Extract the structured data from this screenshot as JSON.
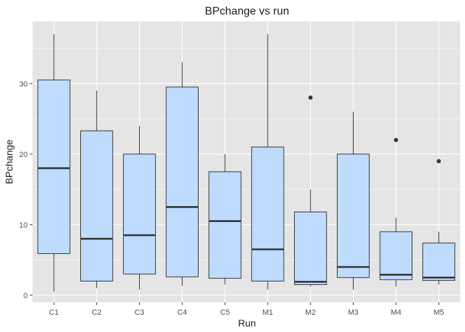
{
  "chart_data": {
    "type": "boxplot",
    "title": "BPchange vs run",
    "xlabel": "Run",
    "ylabel": "BPchange",
    "categories": [
      "C1",
      "C2",
      "C3",
      "C4",
      "C5",
      "M1",
      "M2",
      "M3",
      "M4",
      "M5"
    ],
    "boxes": [
      {
        "category": "C1",
        "min": 0.5,
        "q1": 5.9,
        "median": 18.0,
        "q3": 30.5,
        "max": 37.0,
        "outliers": []
      },
      {
        "category": "C2",
        "min": 1.0,
        "q1": 2.0,
        "median": 8.0,
        "q3": 23.3,
        "max": 29.0,
        "outliers": []
      },
      {
        "category": "C3",
        "min": 0.8,
        "q1": 3.0,
        "median": 8.5,
        "q3": 20.0,
        "max": 24.0,
        "outliers": []
      },
      {
        "category": "C4",
        "min": 1.3,
        "q1": 2.6,
        "median": 12.5,
        "q3": 29.5,
        "max": 33.0,
        "outliers": []
      },
      {
        "category": "C5",
        "min": 1.5,
        "q1": 2.4,
        "median": 10.5,
        "q3": 17.5,
        "max": 20.0,
        "outliers": []
      },
      {
        "category": "M1",
        "min": 0.8,
        "q1": 2.0,
        "median": 6.5,
        "q3": 21.0,
        "max": 37.0,
        "outliers": []
      },
      {
        "category": "M2",
        "min": 1.2,
        "q1": 1.5,
        "median": 1.9,
        "q3": 11.8,
        "max": 15.0,
        "outliers": [
          28.0
        ]
      },
      {
        "category": "M3",
        "min": 0.8,
        "q1": 2.5,
        "median": 4.0,
        "q3": 20.0,
        "max": 26.0,
        "outliers": []
      },
      {
        "category": "M4",
        "min": 1.2,
        "q1": 2.2,
        "median": 2.9,
        "q3": 9.0,
        "max": 11.0,
        "outliers": [
          22.0
        ]
      },
      {
        "category": "M5",
        "min": 1.5,
        "q1": 2.1,
        "median": 2.5,
        "q3": 7.4,
        "max": 9.0,
        "outliers": [
          19.0
        ]
      }
    ],
    "y_ticks": [
      0,
      10,
      20,
      30
    ],
    "ylim": [
      -1.0,
      38.8
    ],
    "grid": true,
    "colors": {
      "panel_background": "#e5e5e5",
      "grid": "#ffffff",
      "box_fill": "#bfdcff",
      "box_stroke": "#333333",
      "median": "#333333",
      "outlier": "#333333",
      "tick_label": "#4d4d4d",
      "text": "#1a1a1a"
    }
  }
}
